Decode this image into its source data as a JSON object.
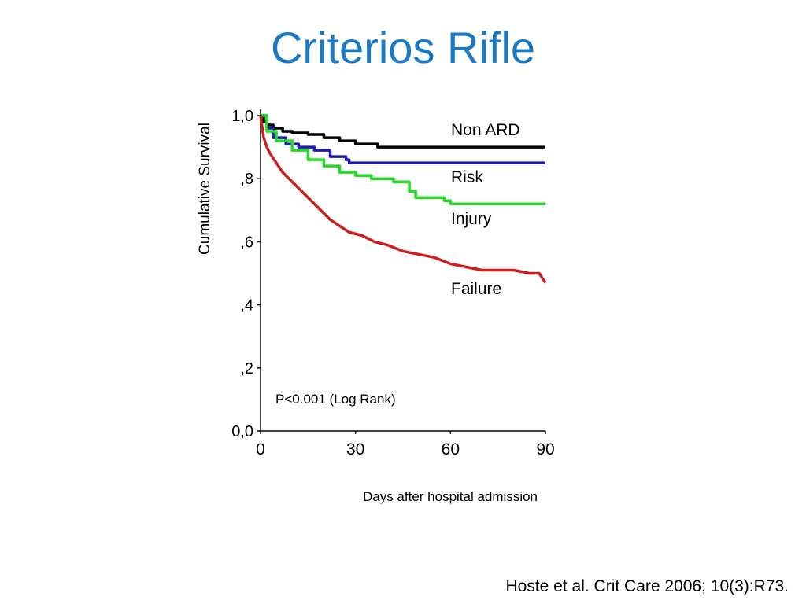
{
  "slide": {
    "title": "Criterios Rifle",
    "citation": "Hoste et al. Crit Care 2006; 10(3):R73."
  },
  "chart_data": {
    "type": "line",
    "title": "",
    "xlabel": "Days after hospital admission",
    "ylabel": "Cumulative Survival",
    "xlim": [
      0,
      90
    ],
    "ylim": [
      0.0,
      1.0
    ],
    "x_ticks": [
      0,
      30,
      60,
      90
    ],
    "x_tick_labels": [
      "0",
      "30",
      "60",
      "90"
    ],
    "y_ticks": [
      0.0,
      0.2,
      0.4,
      0.6,
      0.8,
      1.0
    ],
    "y_tick_labels": [
      "0,0",
      ",2",
      ",4",
      ",6",
      ",8",
      "1,0"
    ],
    "grid": false,
    "annotation": "P<0.001 (Log Rank)",
    "series": [
      {
        "name": "Non ARD",
        "color": "#000000",
        "step": true,
        "x": [
          0,
          1,
          2,
          4,
          7,
          10,
          15,
          20,
          25,
          30,
          37,
          90
        ],
        "y": [
          1.0,
          0.98,
          0.97,
          0.96,
          0.95,
          0.945,
          0.94,
          0.93,
          0.92,
          0.91,
          0.9,
          0.9
        ]
      },
      {
        "name": "Risk",
        "color": "#1c1cb4",
        "step": true,
        "x": [
          0,
          2,
          4,
          8,
          12,
          17,
          22,
          27,
          28,
          90
        ],
        "y": [
          1.0,
          0.96,
          0.93,
          0.91,
          0.9,
          0.89,
          0.87,
          0.86,
          0.85,
          0.85
        ]
      },
      {
        "name": "Injury",
        "color": "#22dd22",
        "step": true,
        "x": [
          0,
          2,
          5,
          10,
          15,
          20,
          25,
          30,
          35,
          42,
          47,
          49,
          58,
          60,
          90
        ],
        "y": [
          1.0,
          0.95,
          0.92,
          0.89,
          0.86,
          0.84,
          0.82,
          0.81,
          0.8,
          0.79,
          0.76,
          0.74,
          0.73,
          0.72,
          0.72
        ]
      },
      {
        "name": "Failure",
        "color": "#cc1f1f",
        "step": false,
        "x": [
          0,
          1,
          2,
          3,
          5,
          7,
          10,
          13,
          16,
          19,
          22,
          25,
          28,
          32,
          36,
          40,
          45,
          50,
          55,
          60,
          65,
          70,
          75,
          80,
          85,
          88,
          90
        ],
        "y": [
          1.0,
          0.93,
          0.9,
          0.88,
          0.85,
          0.82,
          0.79,
          0.76,
          0.73,
          0.7,
          0.67,
          0.65,
          0.63,
          0.62,
          0.6,
          0.59,
          0.57,
          0.56,
          0.55,
          0.53,
          0.52,
          0.51,
          0.51,
          0.51,
          0.5,
          0.5,
          0.47
        ]
      }
    ]
  }
}
